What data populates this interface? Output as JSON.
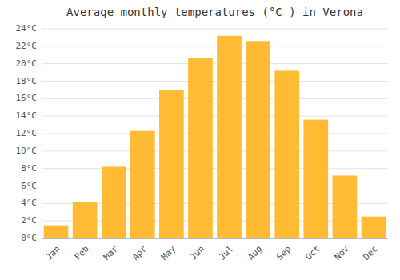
{
  "chart_data": {
    "type": "bar",
    "title": "Average monthly temperatures (°C ) in Verona",
    "categories": [
      "Jan",
      "Feb",
      "Mar",
      "Apr",
      "May",
      "Jun",
      "Jul",
      "Aug",
      "Sep",
      "Oct",
      "Nov",
      "Dec"
    ],
    "values": [
      1.5,
      4.2,
      8.2,
      12.3,
      17.0,
      20.7,
      23.2,
      22.6,
      19.2,
      13.6,
      7.2,
      2.5
    ],
    "color": "#FFBB33",
    "ylim": [
      0,
      24
    ],
    "yticks": [
      {
        "value": 0,
        "label": "0°C"
      },
      {
        "value": 2,
        "label": "2°C"
      },
      {
        "value": 4,
        "label": "4°C"
      },
      {
        "value": 6,
        "label": "6°C"
      },
      {
        "value": 8,
        "label": "8°C"
      },
      {
        "value": 10,
        "label": "10°C"
      },
      {
        "value": 12,
        "label": "12°C"
      },
      {
        "value": 14,
        "label": "14°C"
      },
      {
        "value": 16,
        "label": "16°C"
      },
      {
        "value": 18,
        "label": "18°C"
      },
      {
        "value": 20,
        "label": "20°C"
      },
      {
        "value": 22,
        "label": "22°C"
      },
      {
        "value": 24,
        "label": "24°C"
      }
    ],
    "grid": true
  }
}
